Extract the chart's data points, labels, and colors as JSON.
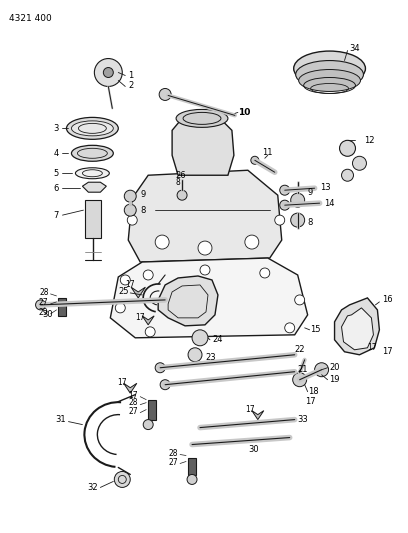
{
  "title_code": "4321 400",
  "bg_color": "#ffffff",
  "lc": "#1a1a1a",
  "fig_width": 4.08,
  "fig_height": 5.33,
  "dpi": 100
}
